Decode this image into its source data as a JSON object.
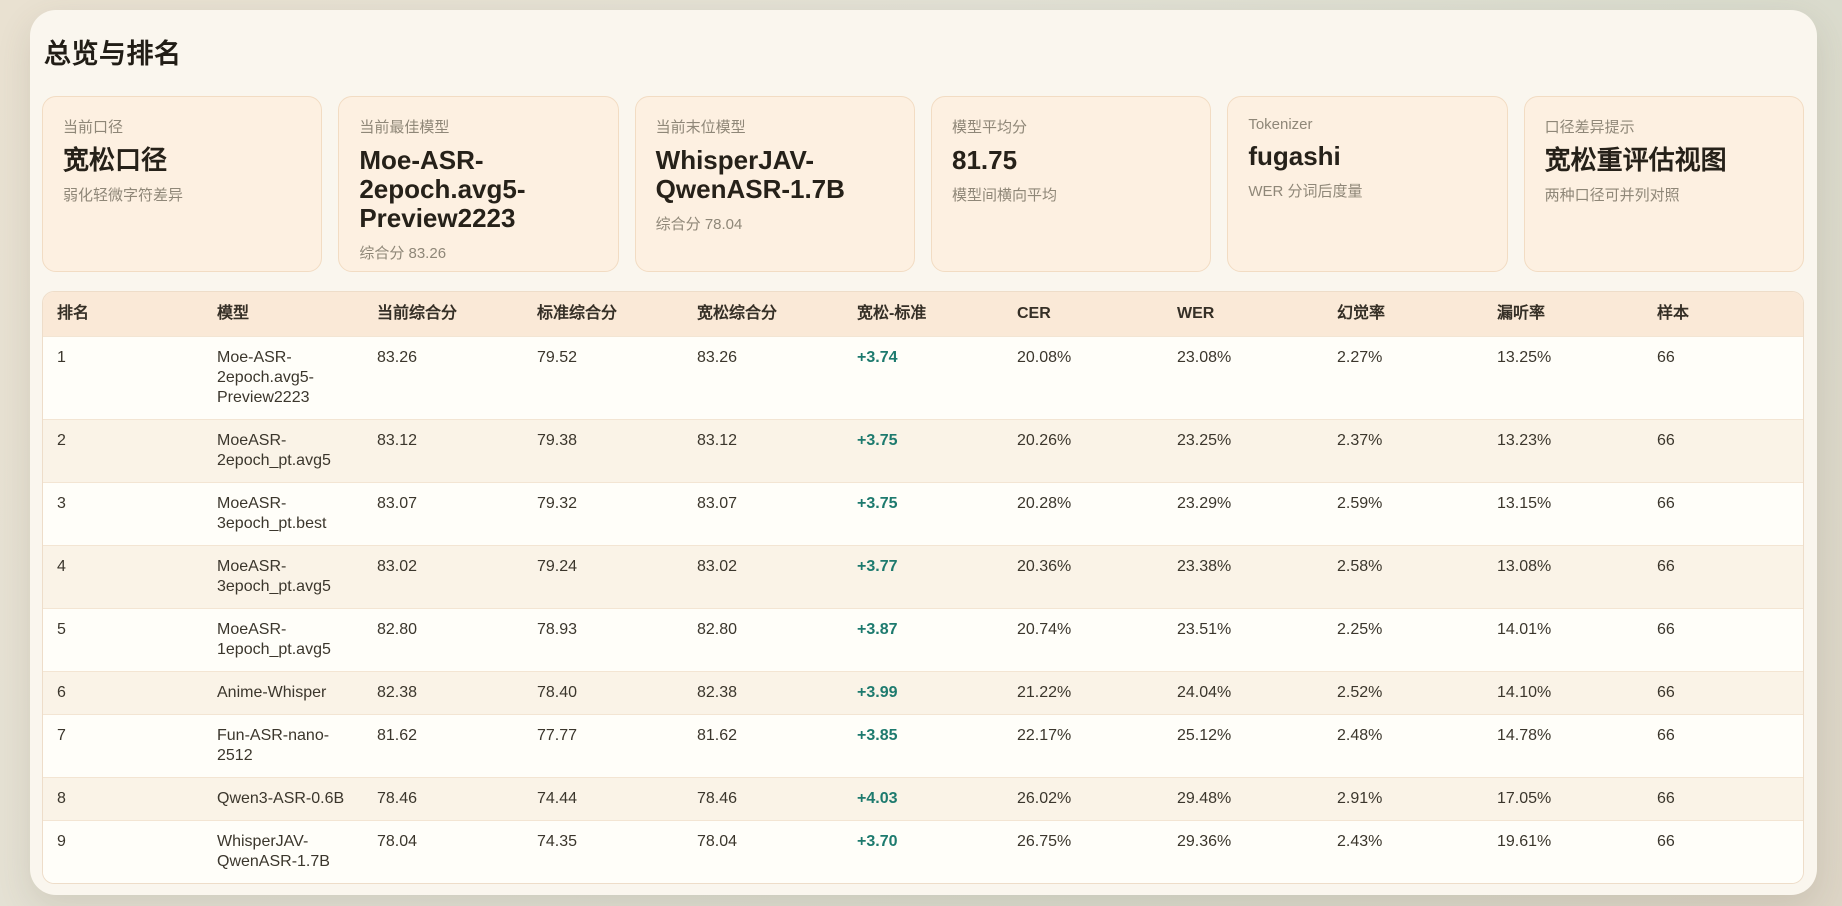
{
  "page": {
    "title": "总览与排名"
  },
  "cards": [
    {
      "label": "当前口径",
      "value": "宽松口径",
      "sub": "弱化轻微字符差异"
    },
    {
      "label": "当前最佳模型",
      "value": "Moe-ASR-2epoch.avg5-Preview2223",
      "sub": "综合分 83.26"
    },
    {
      "label": "当前末位模型",
      "value": "WhisperJAV-QwenASR-1.7B",
      "sub": "综合分 78.04"
    },
    {
      "label": "模型平均分",
      "value": "81.75",
      "sub": "模型间横向平均"
    },
    {
      "label": "Tokenizer",
      "value": "fugashi",
      "sub": "WER 分词后度量"
    },
    {
      "label": "口径差异提示",
      "value": "宽松重评估视图",
      "sub": "两种口径可并列对照"
    }
  ],
  "table": {
    "columns": [
      "排名",
      "模型",
      "当前综合分",
      "标准综合分",
      "宽松综合分",
      "宽松-标准",
      "CER",
      "WER",
      "幻觉率",
      "漏听率",
      "样本"
    ],
    "column_keys": [
      "rank",
      "model",
      "current",
      "standard",
      "lenient",
      "delta",
      "cer",
      "wer",
      "hallucination",
      "miss",
      "samples"
    ],
    "rows": [
      {
        "rank": "1",
        "model": "Moe-ASR-2epoch.avg5-Preview2223",
        "current": "83.26",
        "standard": "79.52",
        "lenient": "83.26",
        "delta": "+3.74",
        "cer": "20.08%",
        "wer": "23.08%",
        "hallucination": "2.27%",
        "miss": "13.25%",
        "samples": "66"
      },
      {
        "rank": "2",
        "model": "MoeASR-2epoch_pt.avg5",
        "current": "83.12",
        "standard": "79.38",
        "lenient": "83.12",
        "delta": "+3.75",
        "cer": "20.26%",
        "wer": "23.25%",
        "hallucination": "2.37%",
        "miss": "13.23%",
        "samples": "66"
      },
      {
        "rank": "3",
        "model": "MoeASR-3epoch_pt.best",
        "current": "83.07",
        "standard": "79.32",
        "lenient": "83.07",
        "delta": "+3.75",
        "cer": "20.28%",
        "wer": "23.29%",
        "hallucination": "2.59%",
        "miss": "13.15%",
        "samples": "66"
      },
      {
        "rank": "4",
        "model": "MoeASR-3epoch_pt.avg5",
        "current": "83.02",
        "standard": "79.24",
        "lenient": "83.02",
        "delta": "+3.77",
        "cer": "20.36%",
        "wer": "23.38%",
        "hallucination": "2.58%",
        "miss": "13.08%",
        "samples": "66"
      },
      {
        "rank": "5",
        "model": "MoeASR-1epoch_pt.avg5",
        "current": "82.80",
        "standard": "78.93",
        "lenient": "82.80",
        "delta": "+3.87",
        "cer": "20.74%",
        "wer": "23.51%",
        "hallucination": "2.25%",
        "miss": "14.01%",
        "samples": "66"
      },
      {
        "rank": "6",
        "model": "Anime-Whisper",
        "current": "82.38",
        "standard": "78.40",
        "lenient": "82.38",
        "delta": "+3.99",
        "cer": "21.22%",
        "wer": "24.04%",
        "hallucination": "2.52%",
        "miss": "14.10%",
        "samples": "66"
      },
      {
        "rank": "7",
        "model": "Fun-ASR-nano-2512",
        "current": "81.62",
        "standard": "77.77",
        "lenient": "81.62",
        "delta": "+3.85",
        "cer": "22.17%",
        "wer": "25.12%",
        "hallucination": "2.48%",
        "miss": "14.78%",
        "samples": "66"
      },
      {
        "rank": "8",
        "model": "Qwen3-ASR-0.6B",
        "current": "78.46",
        "standard": "74.44",
        "lenient": "78.46",
        "delta": "+4.03",
        "cer": "26.02%",
        "wer": "29.48%",
        "hallucination": "2.91%",
        "miss": "17.05%",
        "samples": "66"
      },
      {
        "rank": "9",
        "model": "WhisperJAV-QwenASR-1.7B",
        "current": "78.04",
        "standard": "74.35",
        "lenient": "78.04",
        "delta": "+3.70",
        "cer": "26.75%",
        "wer": "29.36%",
        "hallucination": "2.43%",
        "miss": "19.61%",
        "samples": "66"
      }
    ]
  },
  "colors": {
    "delta_positive": "#1d7a6e",
    "panel_bg": "#faf6ee",
    "card_bg": "#fdf0e1",
    "card_border": "#f2dcc3",
    "table_header_bg": "#fae9d7",
    "row_alt_bg": "#faf3e7"
  }
}
